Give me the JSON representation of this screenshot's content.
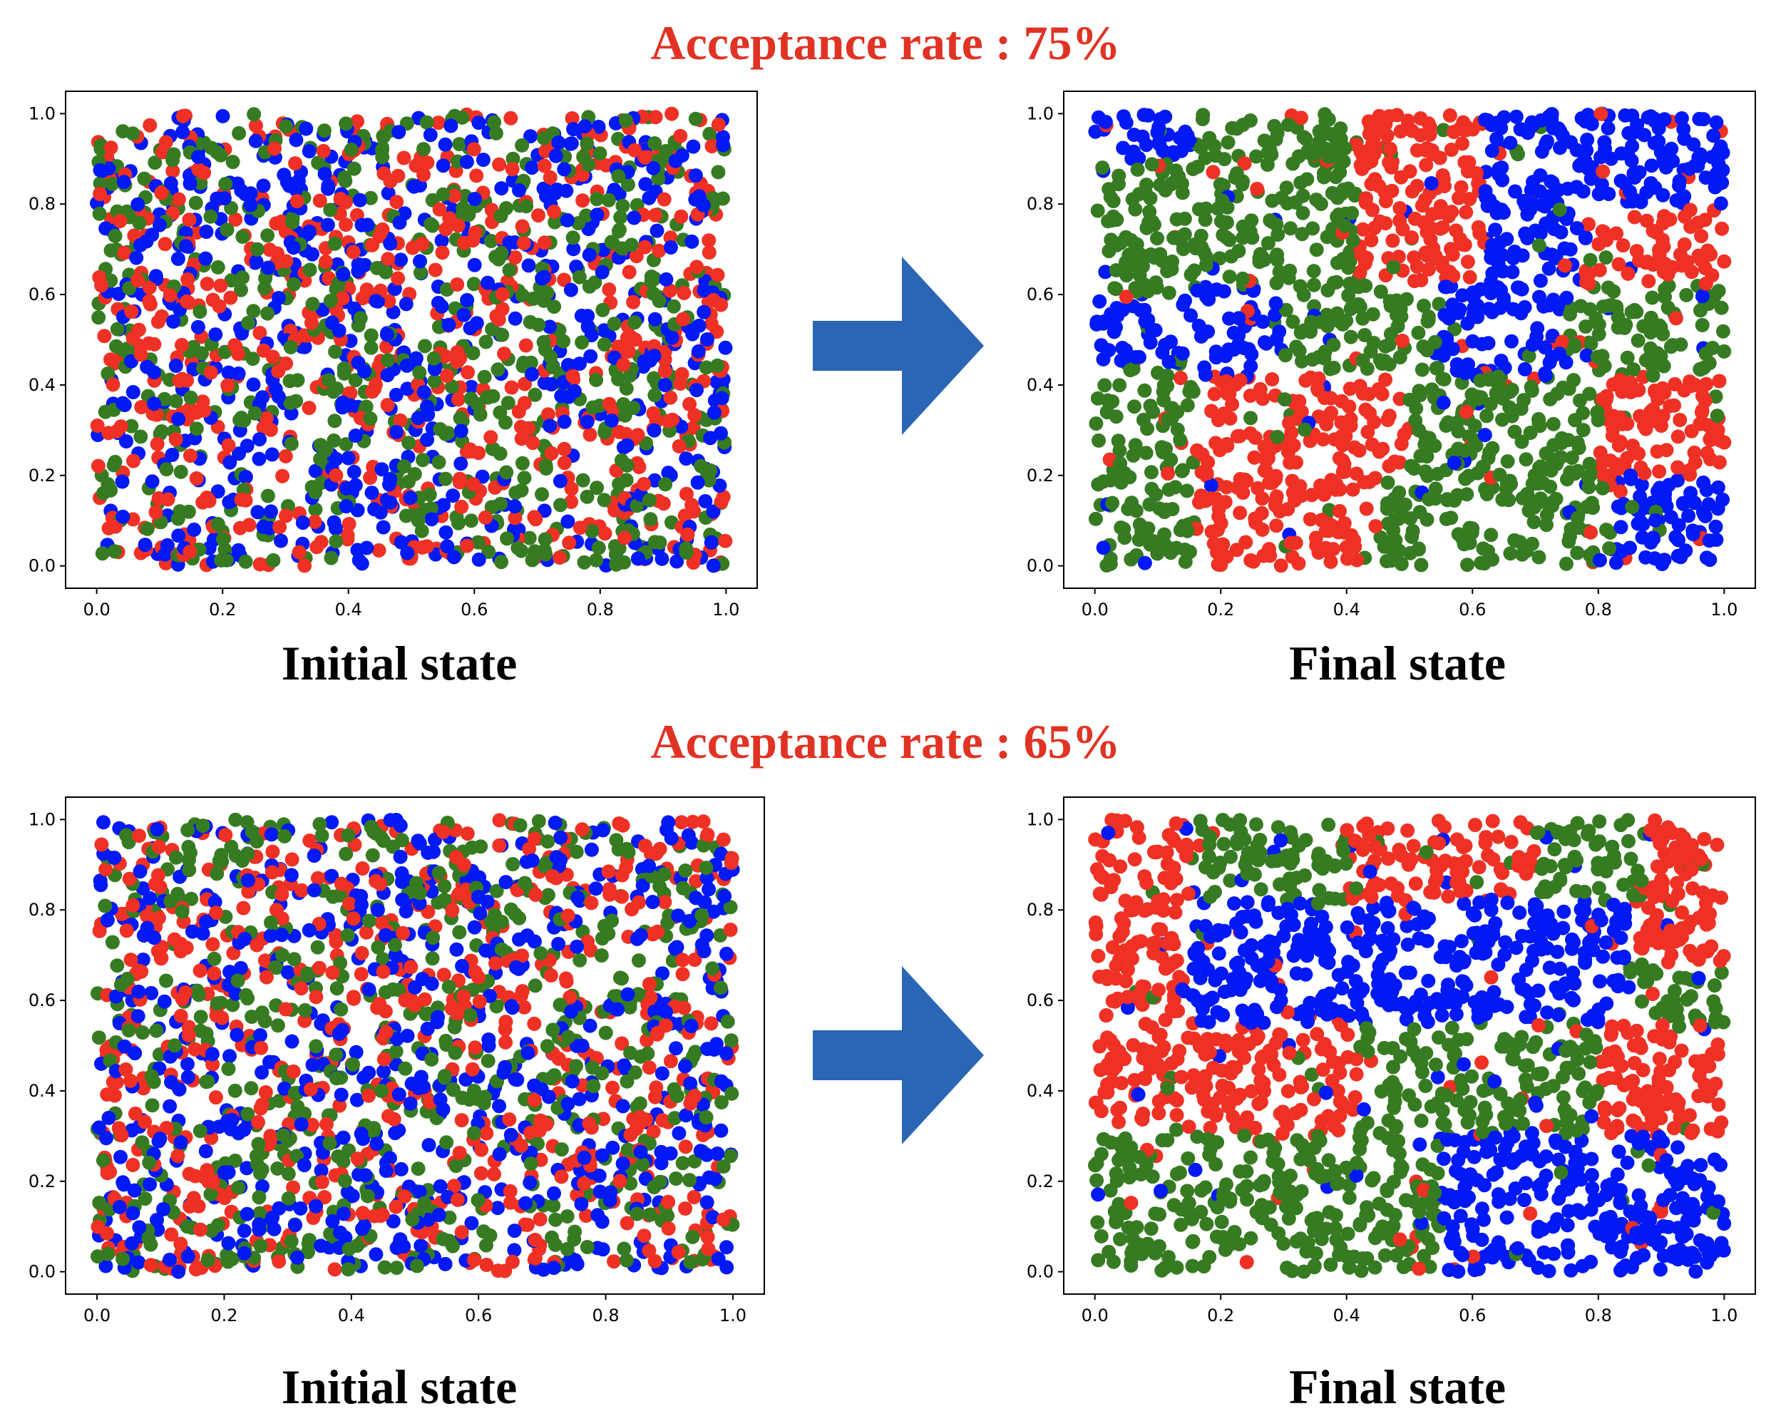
{
  "rows": [
    {
      "heading": "Acceptance rate : 75%",
      "initial_caption": "Initial state",
      "final_caption": "Final state"
    },
    {
      "heading": "Acceptance rate : 65%",
      "initial_caption": "Initial state",
      "final_caption": "Final state"
    }
  ],
  "colors": {
    "red": "#ee3124",
    "blue": "#0019f5",
    "green": "#367b22",
    "heading": "#e03324",
    "arrow": "#2a65b6"
  },
  "icons": [
    "right-arrow-icon"
  ],
  "chart_data": [
    {
      "type": "scatter",
      "panel": "initial-75",
      "xlim": [
        0,
        1
      ],
      "ylim": [
        0,
        1
      ],
      "xticks": [
        "0.0",
        "0.2",
        "0.4",
        "0.6",
        "0.8",
        "1.0"
      ],
      "yticks": [
        "0.0",
        "0.2",
        "0.4",
        "0.6",
        "0.8",
        "1.0"
      ],
      "grid": false,
      "points_per_group": 620,
      "pattern": "uniform random mix of three groups",
      "groups": [
        "red",
        "blue",
        "green"
      ]
    },
    {
      "type": "scatter",
      "panel": "final-75",
      "xlim": [
        0,
        1
      ],
      "ylim": [
        0,
        1
      ],
      "xticks": [
        "0.0",
        "0.2",
        "0.4",
        "0.6",
        "0.8",
        "1.0"
      ],
      "yticks": [
        "0.0",
        "0.2",
        "0.4",
        "0.6",
        "0.8",
        "1.0"
      ],
      "grid": false,
      "points_per_group": 620,
      "pattern": "partially segregated clusters",
      "groups": [
        "red",
        "blue",
        "green"
      ]
    },
    {
      "type": "scatter",
      "panel": "initial-65",
      "xlim": [
        0,
        1
      ],
      "ylim": [
        0,
        1
      ],
      "xticks": [
        "0.0",
        "0.2",
        "0.4",
        "0.6",
        "0.8",
        "1.0"
      ],
      "yticks": [
        "0.0",
        "0.2",
        "0.4",
        "0.6",
        "0.8",
        "1.0"
      ],
      "grid": false,
      "points_per_group": 620,
      "pattern": "uniform random mix of three groups",
      "groups": [
        "red",
        "blue",
        "green"
      ]
    },
    {
      "type": "scatter",
      "panel": "final-65",
      "xlim": [
        0,
        1
      ],
      "ylim": [
        0,
        1
      ],
      "xticks": [
        "0.0",
        "0.2",
        "0.4",
        "0.6",
        "0.8",
        "1.0"
      ],
      "yticks": [
        "0.0",
        "0.2",
        "0.4",
        "0.6",
        "0.8",
        "1.0"
      ],
      "grid": false,
      "points_per_group": 620,
      "pattern": "strongly segregated regions",
      "groups": [
        "red",
        "blue",
        "green"
      ]
    }
  ]
}
